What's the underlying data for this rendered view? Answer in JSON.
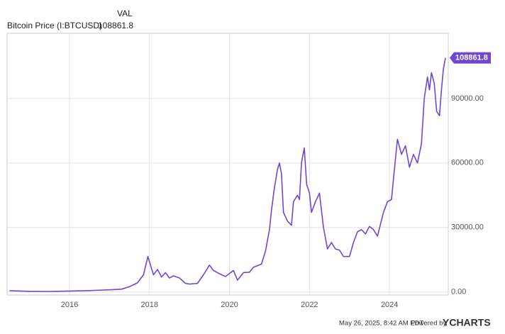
{
  "chart_data": {
    "type": "line",
    "value_header": "VAL",
    "timestamp": "May 26, 2025, 8:42 AM EDT",
    "powered_by": "Powered by",
    "brand": "YCHARTS",
    "x": [
      2014.5,
      2015,
      2015.5,
      2016,
      2016.5,
      2017,
      2017.3,
      2017.5,
      2017.7,
      2017.85,
      2017.96,
      2018.05,
      2018.1,
      2018.2,
      2018.3,
      2018.4,
      2018.5,
      2018.6,
      2018.75,
      2018.9,
      2019,
      2019.2,
      2019.35,
      2019.5,
      2019.6,
      2019.75,
      2019.9,
      2020.1,
      2020.2,
      2020.35,
      2020.5,
      2020.6,
      2020.8,
      2020.9,
      2021,
      2021.05,
      2021.12,
      2021.2,
      2021.25,
      2021.3,
      2021.35,
      2021.45,
      2021.55,
      2021.6,
      2021.7,
      2021.75,
      2021.8,
      2021.87,
      2021.93,
      2022,
      2022.05,
      2022.15,
      2022.25,
      2022.35,
      2022.45,
      2022.55,
      2022.65,
      2022.75,
      2022.85,
      2023,
      2023.1,
      2023.2,
      2023.3,
      2023.4,
      2023.5,
      2023.6,
      2023.7,
      2023.85,
      2023.95,
      2024.05,
      2024.15,
      2024.2,
      2024.3,
      2024.4,
      2024.5,
      2024.6,
      2024.7,
      2024.8,
      2024.87,
      2024.95,
      2025,
      2025.05,
      2025.12,
      2025.18,
      2025.25,
      2025.3,
      2025.35,
      2025.4
    ],
    "series": [
      {
        "name": "Bitcoin Price (I:BTCUSD)",
        "color": "#7048d0",
        "values": [
          600,
          300,
          250,
          430,
          650,
          1000,
          1300,
          2500,
          4300,
          8000,
          16500,
          11000,
          8000,
          10500,
          7000,
          9000,
          6500,
          7500,
          6500,
          4000,
          3700,
          4000,
          8000,
          12500,
          10000,
          8500,
          7200,
          10000,
          5500,
          9000,
          9200,
          11500,
          13000,
          19000,
          29000,
          38000,
          48000,
          57000,
          60000,
          55000,
          37000,
          33000,
          31000,
          42000,
          45000,
          43000,
          60000,
          67000,
          50000,
          46000,
          37000,
          42000,
          46000,
          30000,
          20000,
          23000,
          20000,
          19500,
          16500,
          16500,
          23000,
          28000,
          29000,
          27000,
          30500,
          29000,
          26000,
          37000,
          42000,
          43000,
          62000,
          71000,
          64000,
          68000,
          58000,
          64000,
          60000,
          69000,
          90000,
          100000,
          94000,
          102000,
          97000,
          84000,
          82000,
          94000,
          104000,
          108861.8
        ]
      }
    ],
    "xlim": [
      2014.44,
      2025.47
    ],
    "xticks": [
      2016,
      2018,
      2020,
      2022,
      2024
    ],
    "ylim": [
      -1400,
      120300
    ],
    "yticks": [
      {
        "value": 0,
        "label": "0.00"
      },
      {
        "value": 30000,
        "label": "30000.00"
      },
      {
        "value": 60000,
        "label": "60000.00"
      },
      {
        "value": 90000,
        "label": "90000.00"
      }
    ],
    "grid": true
  }
}
